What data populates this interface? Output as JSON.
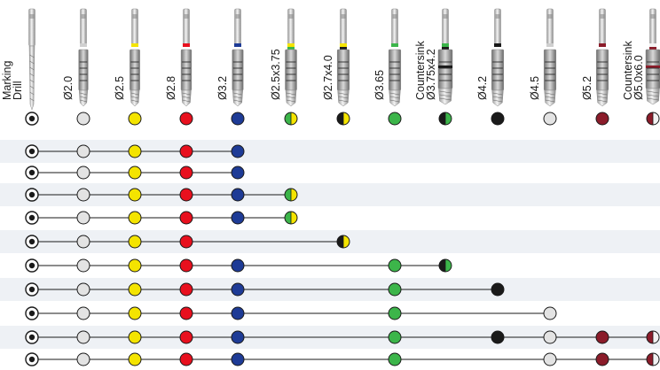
{
  "columns": [
    {
      "label": "Marking Drill",
      "color": "#ffffff",
      "style": "target"
    },
    {
      "label": "Ø2.0",
      "color": "#e3e3e3",
      "style": "solid"
    },
    {
      "label": "Ø2.5",
      "color": "#f4e400",
      "style": "solid"
    },
    {
      "label": "Ø2.8",
      "color": "#e8101e",
      "style": "solid"
    },
    {
      "label": "Ø3.2",
      "color": "#1e3b96",
      "style": "solid"
    },
    {
      "label": "Ø2.5x3.75",
      "color": "#3cb54a",
      "color2": "#f4e400",
      "style": "split"
    },
    {
      "label": "Ø2.7x4.0",
      "color": "#1a1a1a",
      "color2": "#f4e400",
      "style": "split"
    },
    {
      "label": "Ø3.65",
      "color": "#3cb54a",
      "style": "solid"
    },
    {
      "label": "Countersink Ø3.75x4.2",
      "color": "#1a1a1a",
      "color2": "#3cb54a",
      "style": "split"
    },
    {
      "label": "Ø4.2",
      "color": "#1a1a1a",
      "style": "solid"
    },
    {
      "label": "Ø4.5",
      "color": "#e3e3e3",
      "style": "solid"
    },
    {
      "label": "Ø5.2",
      "color": "#8b1c2a",
      "style": "solid"
    },
    {
      "label": "Countersink Ø5.0x6.0",
      "color": "#8b1c2a",
      "color2": "#f2f2f2",
      "style": "split"
    }
  ],
  "sequences": [
    [
      0,
      1,
      2,
      3,
      4
    ],
    [
      0,
      1,
      2,
      3,
      4
    ],
    [
      0,
      1,
      2,
      3,
      4,
      5
    ],
    [
      0,
      1,
      2,
      3,
      4,
      5
    ],
    [
      0,
      1,
      2,
      3,
      6
    ],
    [
      0,
      1,
      2,
      3,
      4,
      7,
      8
    ],
    [
      0,
      1,
      2,
      3,
      4,
      7,
      9
    ],
    [
      0,
      1,
      2,
      3,
      4,
      7,
      10
    ],
    [
      0,
      1,
      2,
      3,
      4,
      7,
      9,
      10,
      11,
      12
    ],
    [
      0,
      1,
      2,
      3,
      4,
      7,
      10,
      11,
      12
    ]
  ]
}
